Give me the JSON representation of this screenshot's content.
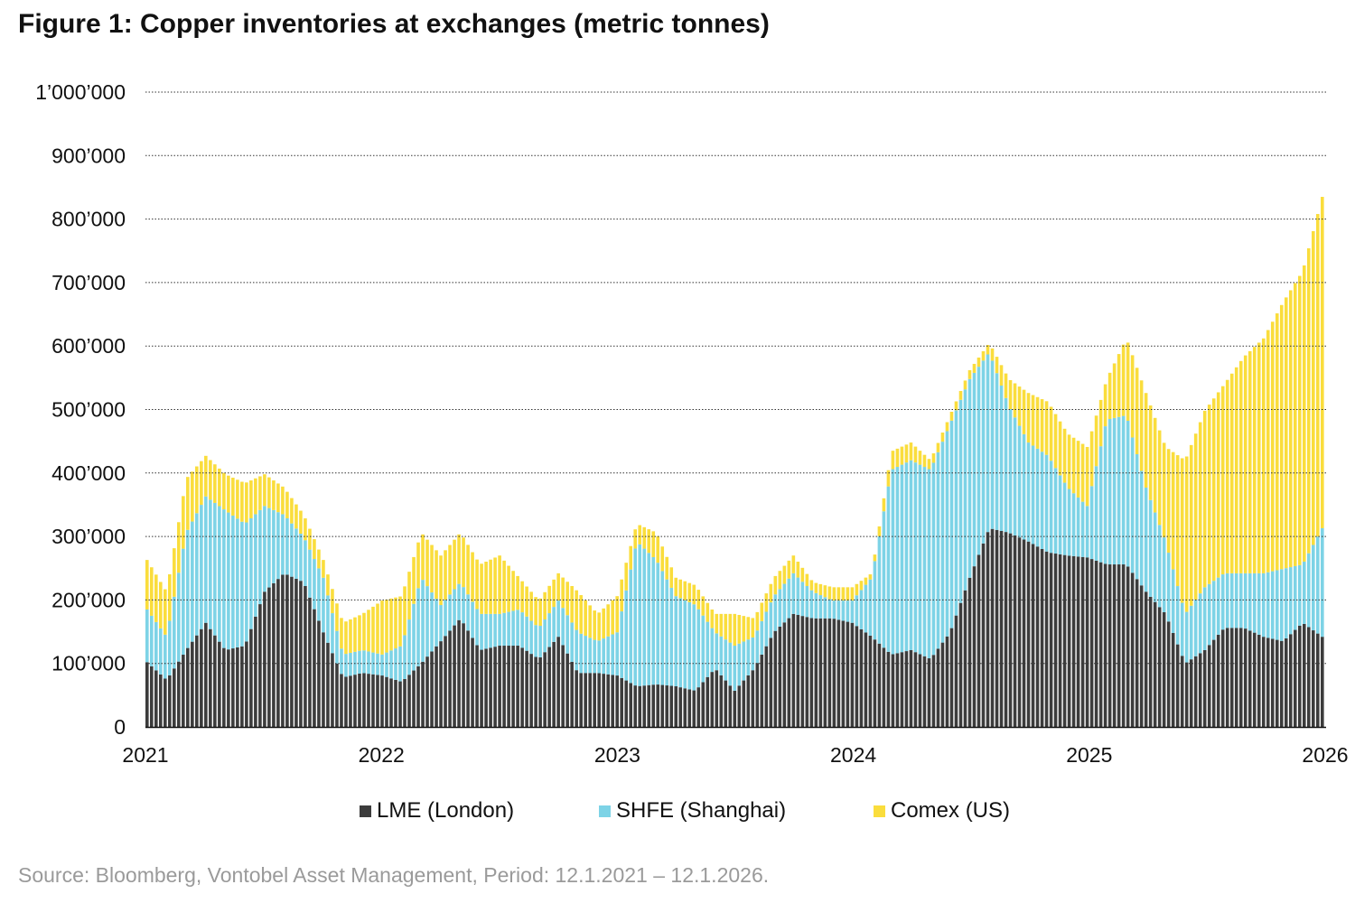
{
  "title": "Figure 1: Copper inventories at exchanges (metric tonnes)",
  "source": "Source: Bloomberg, Vontobel Asset Management, Period: 12.1.2021 – 12.1.2026.",
  "chart_data": {
    "type": "bar",
    "stacked": true,
    "title": "Figure 1: Copper inventories at exchanges (metric tonnes)",
    "xlabel": "",
    "ylabel": "",
    "x_start": 2021.03,
    "x_step": "1 month",
    "x_range": [
      2021,
      2026
    ],
    "ylim": [
      0,
      1000000
    ],
    "y_ticks": [
      "0",
      "100’000",
      "200’000",
      "300’000",
      "400’000",
      "500’000",
      "600’000",
      "700’000",
      "800’000",
      "900’000",
      "1’000’000"
    ],
    "x_ticks": [
      "2021",
      "2022",
      "2023",
      "2024",
      "2025",
      "2026"
    ],
    "grid": "horizontal dotted",
    "legend_position": "bottom",
    "units_note": "values in thousand tonnes",
    "series": [
      {
        "name": "LME (London)",
        "color": "#3c3c3c",
        "values": [
          102,
          74,
          121,
          164,
          121,
          128,
          213,
          242,
          228,
          149,
          78,
          85,
          81,
          71,
          100,
          135,
          171,
          121,
          128,
          128,
          107,
          142,
          85,
          85,
          81,
          64,
          67,
          64,
          57,
          92,
          57,
          92,
          149,
          178,
          171,
          171,
          164,
          142,
          114,
          121,
          107,
          149,
          235,
          313,
          306,
          292,
          275,
          270,
          267,
          256,
          256,
          213,
          178,
          100,
          121,
          156,
          156,
          142,
          135,
          164,
          142
        ]
      },
      {
        "name": "SHFE (Shanghai)",
        "color": "#7dd3e6",
        "values": [
          83,
          68,
          185,
          199,
          220,
          192,
          135,
          92,
          71,
          86,
          36,
          36,
          33,
          57,
          135,
          57,
          57,
          57,
          50,
          57,
          49,
          57,
          64,
          50,
          68,
          228,
          196,
          142,
          135,
          57,
          71,
          50,
          57,
          64,
          42,
          28,
          35,
          93,
          291,
          299,
          298,
          328,
          313,
          277,
          199,
          156,
          152,
          107,
          81,
          228,
          235,
          164,
          114,
          78,
          99,
          86,
          86,
          100,
          114,
          92,
          171
        ]
      },
      {
        "name": "Comex (US)",
        "color": "#fadd3c",
        "values": [
          78,
          71,
          85,
          64,
          57,
          64,
          50,
          43,
          35,
          28,
          50,
          57,
          85,
          78,
          71,
          78,
          78,
          78,
          92,
          50,
          43,
          43,
          64,
          43,
          57,
          28,
          43,
          29,
          31,
          29,
          50,
          29,
          29,
          28,
          15,
          21,
          21,
          7,
          29,
          28,
          15,
          14,
          14,
          15,
          43,
          78,
          85,
          85,
          93,
          64,
          121,
          149,
          149,
          242,
          278,
          298,
          341,
          370,
          420,
          462,
          522
        ]
      }
    ]
  }
}
